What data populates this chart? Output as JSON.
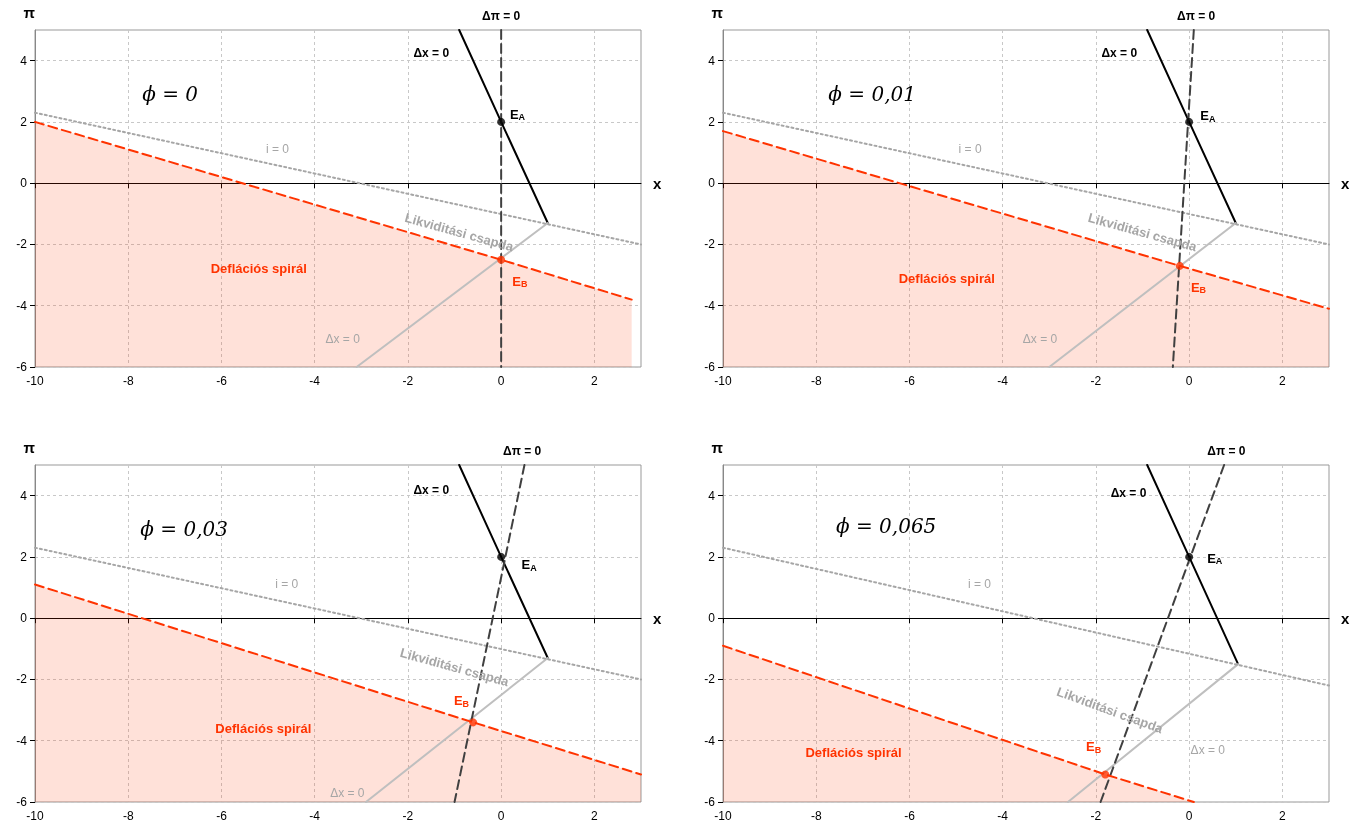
{
  "chart_data": [
    {
      "type": "line",
      "xlabel": "x",
      "ylabel": "π",
      "xlim": [
        -10,
        3
      ],
      "ylim": [
        -6,
        5
      ],
      "xticks": [
        -10,
        -8,
        -6,
        -4,
        -2,
        0,
        2
      ],
      "yticks": [
        -6,
        -4,
        -2,
        0,
        2,
        4
      ],
      "grid": true,
      "series": [
        {
          "color": "#000000",
          "line_style": "solid",
          "x": [
            -0.9,
            0,
            1
          ],
          "values": [
            5,
            2,
            -1.3
          ]
        },
        {
          "color": "#bfbfbf",
          "line_style": "solid",
          "x": [
            1,
            -3.1
          ],
          "values": [
            -1.3,
            -6
          ]
        },
        {
          "color": "#a6a6a6",
          "line_style": "dotted",
          "x": [
            -10,
            3
          ],
          "values": [
            2.3,
            -2.0
          ]
        },
        {
          "color": "#404040",
          "line_style": "dashed",
          "x": [
            0,
            0
          ],
          "values": [
            5,
            -6
          ]
        },
        {
          "color": "#ff3300",
          "line_style": "dashed",
          "x": [
            -10,
            0,
            2.8
          ],
          "values": [
            2.0,
            -2.5,
            -3.8
          ],
          "lower": [
            -6,
            -6,
            -6
          ],
          "upper": [
            2.0,
            -2.5,
            -3.8
          ]
        },
        {
          "type": "scatter",
          "color": "#000000",
          "marker": "circle",
          "x": [
            0
          ],
          "values": [
            2
          ]
        },
        {
          "type": "scatter",
          "color": "#ff3300",
          "marker": "circle",
          "x": [
            0
          ],
          "values": [
            -2.5
          ]
        }
      ],
      "annotations": [
        "ϕ = 0",
        "Δπ = 0",
        "Δx = 0",
        "E$_{A}$",
        "i = 0",
        "Likviditási csapda",
        "Δx = 0",
        "E$_{B}$",
        "Deflációs spirál"
      ]
    },
    {
      "type": "line",
      "xlabel": "x",
      "ylabel": "π",
      "xlim": [
        -10,
        3
      ],
      "ylim": [
        -6,
        5
      ],
      "xticks": [
        -10,
        -8,
        -6,
        -4,
        -2,
        0,
        2
      ],
      "yticks": [
        -6,
        -4,
        -2,
        0,
        2,
        4
      ],
      "grid": true,
      "series": [
        {
          "color": "#000000",
          "line_style": "solid",
          "x": [
            -0.9,
            0,
            1
          ],
          "values": [
            5,
            2,
            -1.3
          ]
        },
        {
          "color": "#bfbfbf",
          "line_style": "solid",
          "x": [
            1,
            -3.0
          ],
          "values": [
            -1.3,
            -6
          ]
        },
        {
          "color": "#a6a6a6",
          "line_style": "dotted",
          "x": [
            -10,
            3
          ],
          "values": [
            2.3,
            -2.0
          ]
        },
        {
          "color": "#404040",
          "line_style": "dashed",
          "x": [
            0.1,
            -0.35
          ],
          "values": [
            5,
            -6
          ]
        },
        {
          "color": "#ff3300",
          "line_style": "dashed",
          "x": [
            -10,
            -0.2,
            3
          ],
          "values": [
            1.7,
            -2.7,
            -4.1
          ],
          "lower": [
            -6,
            -6,
            -6
          ],
          "upper": [
            1.7,
            -2.7,
            -4.1
          ]
        },
        {
          "type": "scatter",
          "color": "#000000",
          "marker": "circle",
          "x": [
            0
          ],
          "values": [
            2
          ]
        },
        {
          "type": "scatter",
          "color": "#ff3300",
          "marker": "circle",
          "x": [
            -0.2
          ],
          "values": [
            -2.7
          ]
        }
      ],
      "annotations": [
        "ϕ = 0,01",
        "Δπ = 0",
        "Δx = 0",
        "E$_{A}$",
        "i = 0",
        "Likviditási csapda",
        "Δx = 0",
        "E$_{B}$",
        "Deflációs spirál"
      ]
    },
    {
      "type": "line",
      "xlabel": "x",
      "ylabel": "π",
      "xlim": [
        -10,
        3
      ],
      "ylim": [
        -6,
        5
      ],
      "xticks": [
        -10,
        -8,
        -6,
        -4,
        -2,
        0,
        2
      ],
      "yticks": [
        -6,
        -4,
        -2,
        0,
        2,
        4
      ],
      "grid": true,
      "series": [
        {
          "color": "#000000",
          "line_style": "solid",
          "x": [
            -0.9,
            0,
            1
          ],
          "values": [
            5,
            2,
            -1.3
          ]
        },
        {
          "color": "#bfbfbf",
          "line_style": "solid",
          "x": [
            1,
            -2.9
          ],
          "values": [
            -1.3,
            -6
          ]
        },
        {
          "color": "#a6a6a6",
          "line_style": "dotted",
          "x": [
            -10,
            3
          ],
          "values": [
            2.3,
            -2.0
          ]
        },
        {
          "color": "#404040",
          "line_style": "dashed",
          "x": [
            0.5,
            -1.0
          ],
          "values": [
            5,
            -6
          ]
        },
        {
          "color": "#ff3300",
          "line_style": "dashed",
          "x": [
            -10,
            -0.6,
            3
          ],
          "values": [
            1.1,
            -3.4,
            -5.1
          ],
          "lower": [
            -6,
            -6,
            -6
          ],
          "upper": [
            1.1,
            -3.4,
            -5.1
          ]
        },
        {
          "type": "scatter",
          "color": "#000000",
          "marker": "circle",
          "x": [
            0
          ],
          "values": [
            2
          ]
        },
        {
          "type": "scatter",
          "color": "#ff3300",
          "marker": "circle",
          "x": [
            -0.6
          ],
          "values": [
            -3.4
          ]
        }
      ],
      "annotations": [
        "ϕ = 0,03",
        "Δπ = 0",
        "Δx = 0",
        "E$_{A}$",
        "i = 0",
        "Likviditási csapda",
        "Δx = 0",
        "E$_{B}$",
        "Deflációs spirál"
      ]
    },
    {
      "type": "line",
      "xlabel": "x",
      "ylabel": "π",
      "xlim": [
        -10,
        3
      ],
      "ylim": [
        -6,
        5
      ],
      "xticks": [
        -10,
        -8,
        -6,
        -4,
        -2,
        0,
        2
      ],
      "yticks": [
        -6,
        -4,
        -2,
        0,
        2,
        4
      ],
      "grid": true,
      "series": [
        {
          "color": "#000000",
          "line_style": "solid",
          "x": [
            -0.9,
            0,
            1.05
          ],
          "values": [
            5,
            2,
            -1.5
          ]
        },
        {
          "color": "#bfbfbf",
          "line_style": "solid",
          "x": [
            1.05,
            -2.6
          ],
          "values": [
            -1.5,
            -6
          ]
        },
        {
          "color": "#a6a6a6",
          "line_style": "dotted",
          "x": [
            -10,
            3
          ],
          "values": [
            2.3,
            -2.2
          ]
        },
        {
          "color": "#404040",
          "line_style": "dashed",
          "x": [
            0.75,
            -1.9
          ],
          "values": [
            5,
            -6
          ]
        },
        {
          "color": "#ff3300",
          "line_style": "dashed",
          "x": [
            -10,
            -1.8,
            0.1
          ],
          "values": [
            -0.9,
            -5.1,
            -6
          ],
          "lower": [
            -6,
            -6,
            -6
          ],
          "upper": [
            -0.9,
            -5.1,
            -6
          ]
        },
        {
          "type": "scatter",
          "color": "#000000",
          "marker": "circle",
          "x": [
            0
          ],
          "values": [
            2
          ]
        },
        {
          "type": "scatter",
          "color": "#ff3300",
          "marker": "circle",
          "x": [
            -1.8
          ],
          "values": [
            -5.1
          ]
        }
      ],
      "annotations": [
        "ϕ = 0,065",
        "Δπ = 0",
        "Δx = 0",
        "E$_{A}$",
        "i = 0",
        "Likviditási csapda",
        "Δx = 0",
        "E$_{B}$",
        "Deflációs spirál"
      ]
    }
  ]
}
